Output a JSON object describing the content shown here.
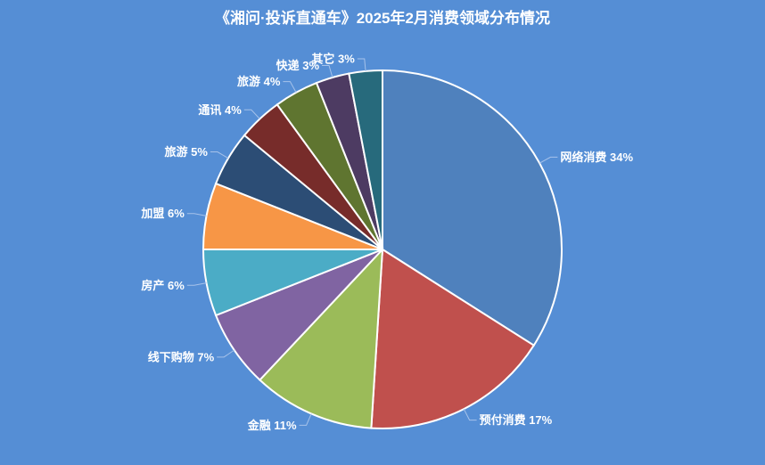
{
  "chart_data": {
    "type": "pie",
    "title": "《湘问·投诉直通车》2025年2月消费领域分布情况",
    "slices": [
      {
        "name": "网络消费",
        "value": 34,
        "label": "网络消费 34%",
        "color": "#4f81bd"
      },
      {
        "name": "预付消费",
        "value": 17,
        "label": "预付消费 17%",
        "color": "#c0504d"
      },
      {
        "name": "金融",
        "value": 11,
        "label": "金融 11%",
        "color": "#9bbb59"
      },
      {
        "name": "线下购物",
        "value": 7,
        "label": "线下购物 7%",
        "color": "#8064a2"
      },
      {
        "name": "房产",
        "value": 6,
        "label": "房产 6%",
        "color": "#4bacc6"
      },
      {
        "name": "加盟",
        "value": 6,
        "label": "加盟 6%",
        "color": "#f79646"
      },
      {
        "name": "旅游",
        "value": 5,
        "label": "旅游 5%",
        "color": "#2c4d75"
      },
      {
        "name": "通讯",
        "value": 4,
        "label": "通讯 4%",
        "color": "#772c2a"
      },
      {
        "name": "旅游",
        "value": 4,
        "label": "旅游 4%",
        "color": "#5f7530"
      },
      {
        "name": "快递",
        "value": 3,
        "label": "快递 3%",
        "color": "#4d3b62"
      },
      {
        "name": "其它",
        "value": 3,
        "label": "其它 3%",
        "color": "#276a7c"
      }
    ],
    "legend": "none",
    "start_angle": "12 o'clock, clockwise"
  }
}
